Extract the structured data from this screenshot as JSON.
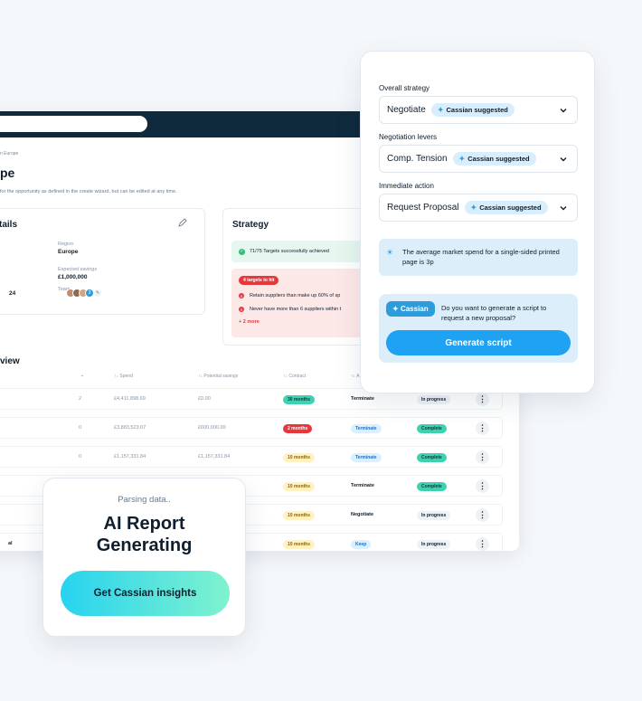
{
  "dashboard": {
    "breadcrumb": "n Europe",
    "title": "pe",
    "subtitle": "for the opportunity as defined in the create wizard, but can be edited at any time.",
    "details": {
      "heading": "tails",
      "region_label": "Region",
      "region_value": "Europe",
      "savings_label": "Expected savings",
      "savings_value": "£1,000,000",
      "team_label": "Team",
      "left_value": "24",
      "team_count": "3"
    },
    "strategy": {
      "heading": "Strategy",
      "success": "71/75 Targets successfully achieved",
      "targets_pill": "4 targets to hit",
      "item1": "Retain suppliers than make up 60% of sp",
      "item2": "Never have more than 6 suppliers within t",
      "more": "+ 2 more"
    },
    "overview_heading": "view",
    "columns": [
      "↑↓ Spend",
      "↑↓ Potential savings",
      "↑↓ Contract",
      "↑↓ A"
    ],
    "rows": [
      {
        "name": "",
        "comments": "2",
        "spend": "£4,411,898.69",
        "savings": "£0.00",
        "contract": "30 months",
        "action": "Terminate",
        "status": "In progress"
      },
      {
        "name": "",
        "comments": "0",
        "spend": "£3,883,523.07",
        "savings": "£600,000.00",
        "contract": "2 months",
        "action": "Terminate",
        "status": "Complete"
      },
      {
        "name": "",
        "comments": "0",
        "spend": "£1,157,331.84",
        "savings": "£1,157,331.84",
        "contract": "10 months",
        "action": "Terminate",
        "status": "Complete"
      },
      {
        "name": "",
        "comments": "",
        "spend": "",
        "savings": "",
        "contract": "10 months",
        "action": "Terminate",
        "status": "Complete"
      },
      {
        "name": "",
        "comments": "",
        "spend": "",
        "savings": "",
        "contract": "10 months",
        "action": "Negotiate",
        "status": "In progress"
      },
      {
        "name": "al",
        "comments": "",
        "spend": "",
        "savings": "",
        "contract": "10 months",
        "action": "Keep",
        "status": "In progress"
      }
    ]
  },
  "panel": {
    "overall_label": "Overall strategy",
    "overall_value": "Negotiate",
    "levers_label": "Negotiation levers",
    "levers_value": "Comp. Tension",
    "action_label": "Immediate action",
    "action_value": "Request Proposal",
    "suggested": "Cassian suggested",
    "tip": "The average market spend for a single-sided printed page is 3p",
    "cassian_pill": "Cassian",
    "question": "Do you want to generate a script to request a new proposal?",
    "generate_button": "Generate script"
  },
  "report": {
    "status": "Parsing data..",
    "title_line1": "AI Report",
    "title_line2": "Generating",
    "cta": "Get Cassian insights"
  }
}
